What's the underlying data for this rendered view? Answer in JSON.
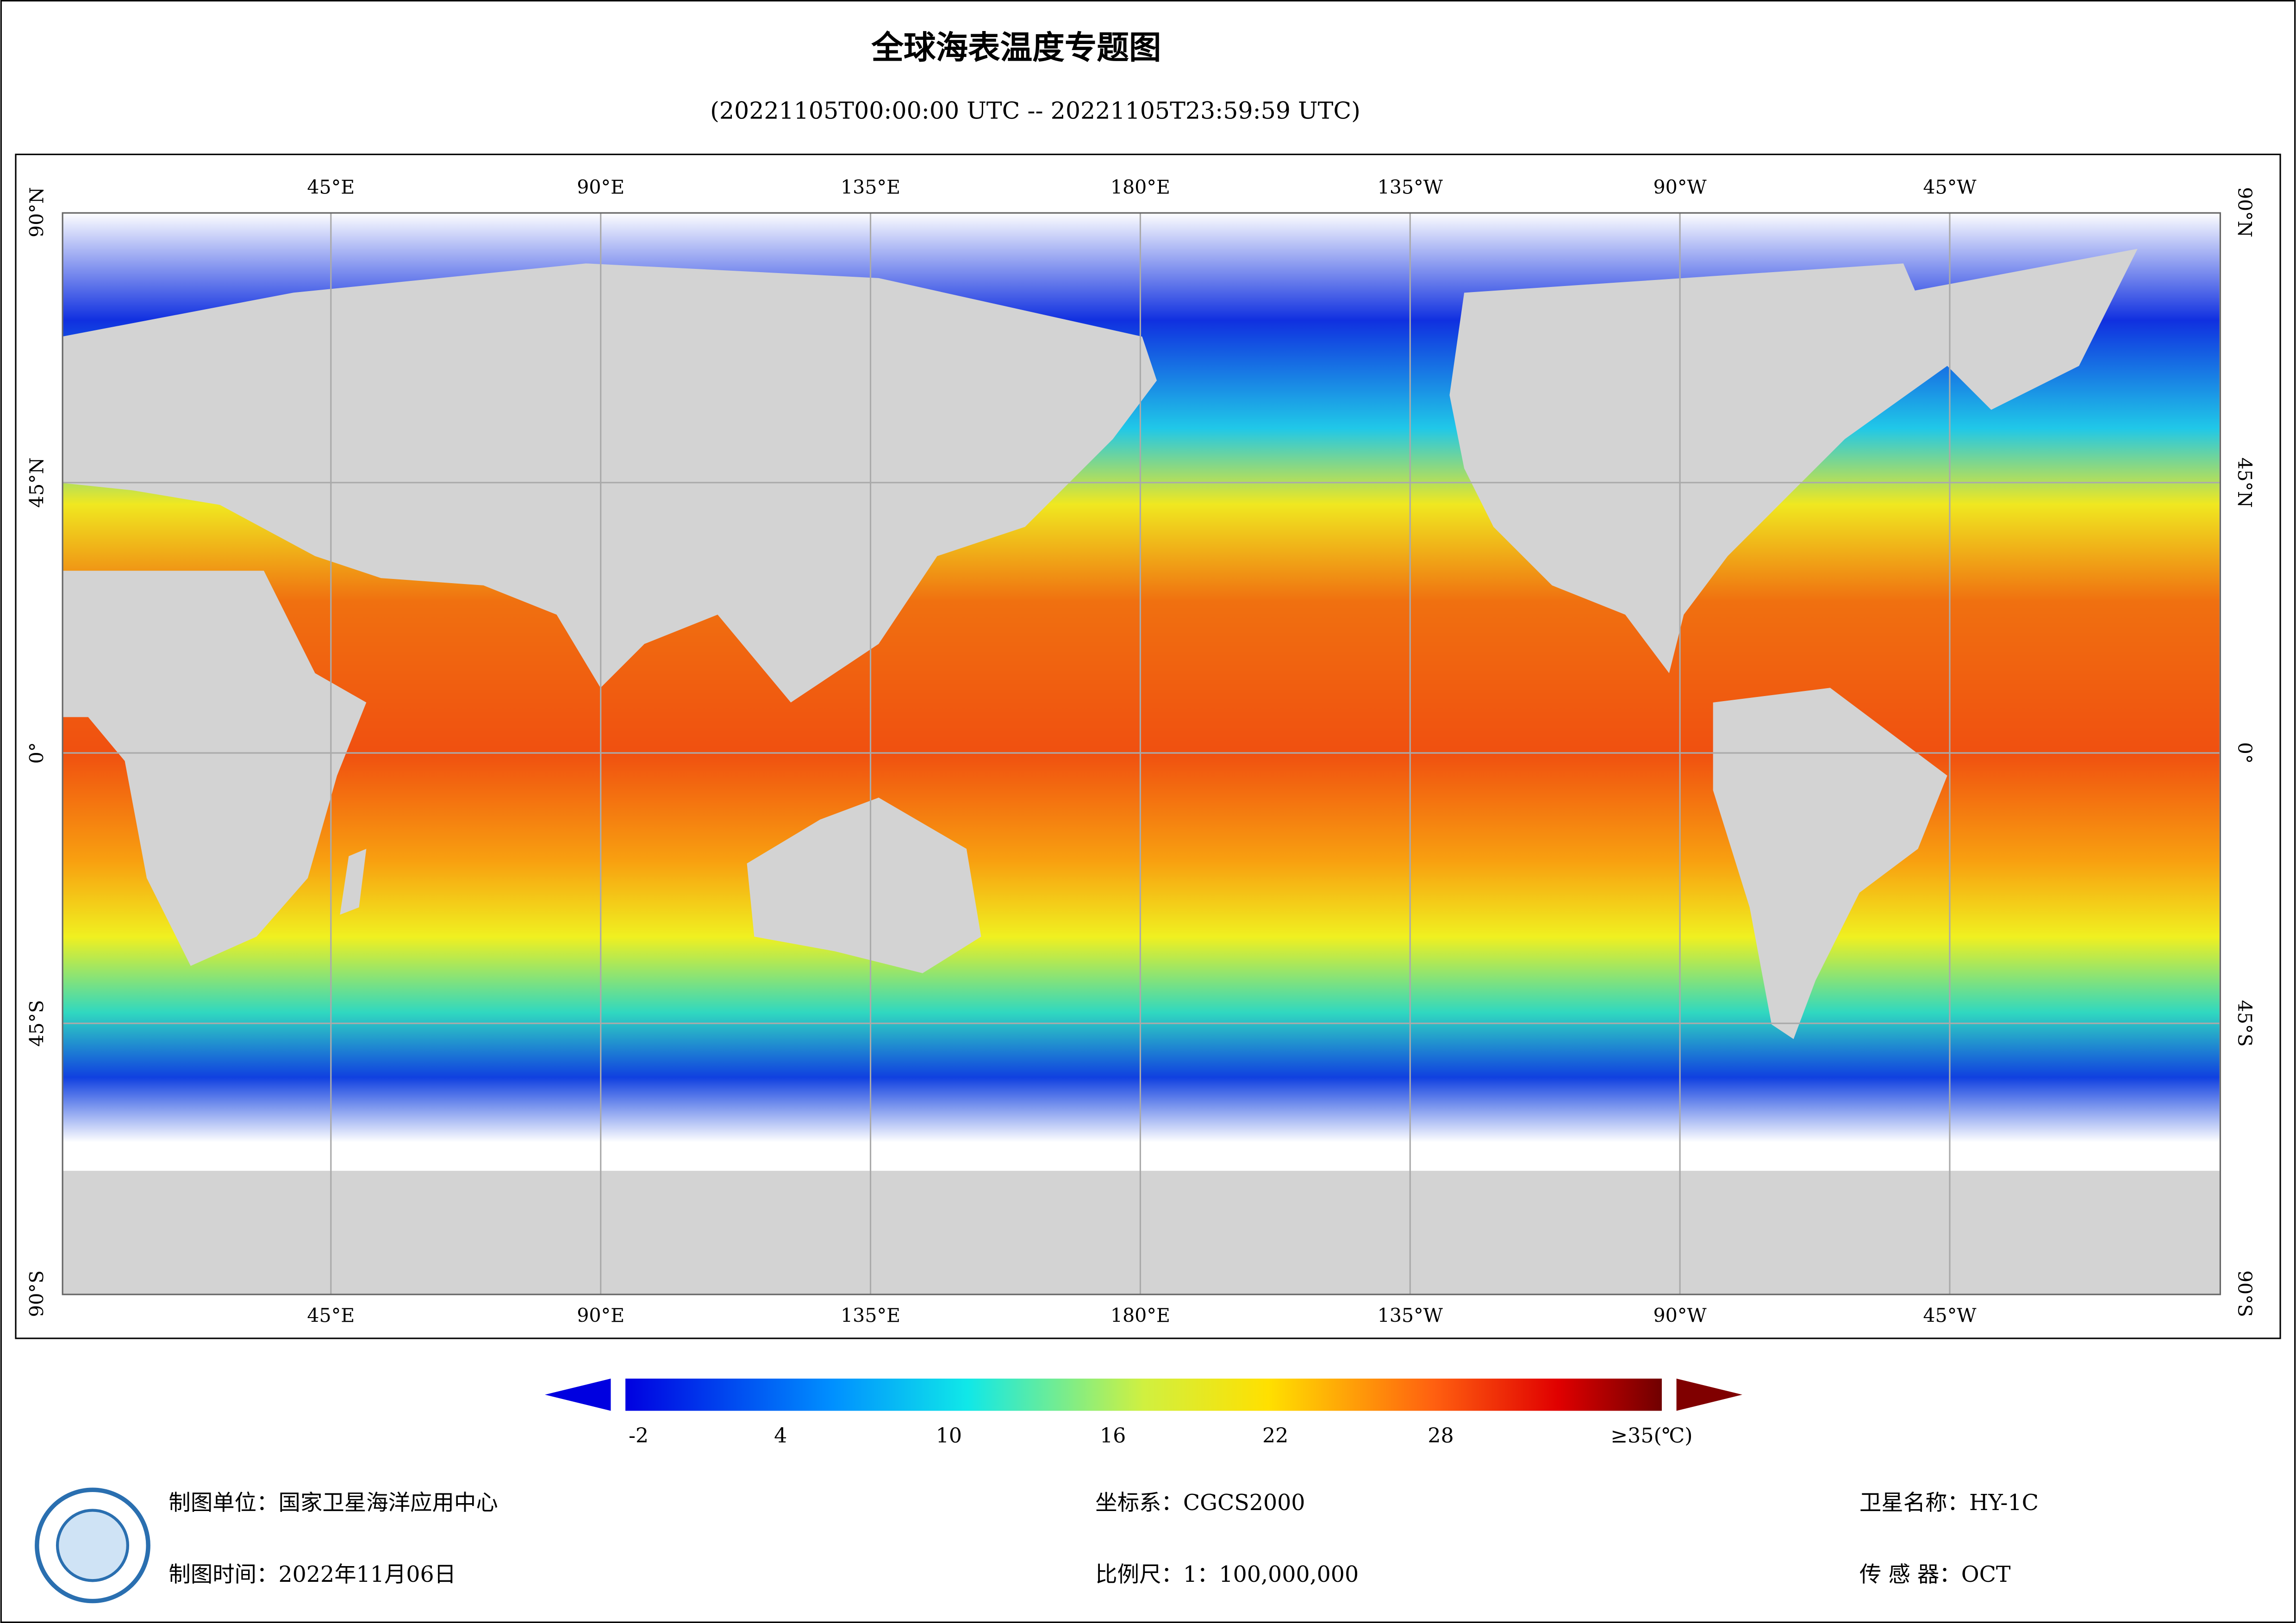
{
  "title": "全球海表温度专题图",
  "subtitle": "(20221105T00:00:00 UTC -- 20221105T23:59:59 UTC)",
  "map": {
    "lon_labels": [
      "45°E",
      "90°E",
      "135°E",
      "180°E",
      "135°W",
      "90°W",
      "45°W"
    ],
    "lat_labels": [
      "90°N",
      "45°N",
      "0°",
      "45°S",
      "90°S"
    ]
  },
  "colorbar": {
    "ticks": [
      "-2",
      "4",
      "10",
      "16",
      "22",
      "28",
      "≥35(℃)"
    ]
  },
  "footer": {
    "left": [
      "制图单位：国家卫星海洋应用中心",
      "制图时间：2022年11月06日"
    ],
    "middle": [
      "坐标系：CGCS2000",
      "比例尺：1：100,000,000"
    ],
    "right": [
      "卫星名称：HY-1C",
      "传 感 器：OCT"
    ]
  }
}
